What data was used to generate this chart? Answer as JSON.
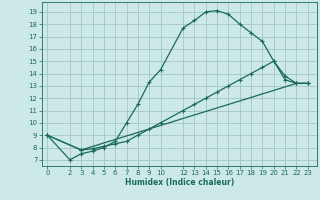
{
  "xlabel": "Humidex (Indice chaleur)",
  "bg_color": "#cce8e8",
  "grid_color": "#9bbfbf",
  "line_color": "#1a6b5a",
  "ylim": [
    6.5,
    19.8
  ],
  "xlim": [
    -0.5,
    23.8
  ],
  "yticks": [
    7,
    8,
    9,
    10,
    11,
    12,
    13,
    14,
    15,
    16,
    17,
    18,
    19
  ],
  "xticks": [
    0,
    2,
    3,
    4,
    5,
    6,
    7,
    8,
    9,
    10,
    12,
    13,
    14,
    15,
    16,
    17,
    18,
    19,
    20,
    21,
    22,
    23
  ],
  "curve1_x": [
    0,
    2,
    3,
    4,
    5,
    6,
    7,
    8,
    9,
    10,
    12,
    13,
    14,
    15,
    16,
    17,
    18,
    19,
    20,
    21,
    22,
    23
  ],
  "curve1_y": [
    9.0,
    7.0,
    7.5,
    7.7,
    8.0,
    8.5,
    10.0,
    11.5,
    13.3,
    14.3,
    17.7,
    18.3,
    19.0,
    19.1,
    18.8,
    18.0,
    17.3,
    16.6,
    15.0,
    13.5,
    13.2,
    13.2
  ],
  "curve2_x": [
    0,
    3,
    4,
    5,
    6,
    7,
    8,
    9,
    10,
    12,
    13,
    14,
    15,
    16,
    17,
    18,
    19,
    20,
    21,
    22,
    23
  ],
  "curve2_y": [
    9.0,
    7.8,
    7.9,
    8.1,
    8.3,
    8.5,
    9.0,
    9.5,
    10.0,
    11.0,
    11.5,
    12.0,
    12.5,
    13.0,
    13.5,
    14.0,
    14.5,
    15.0,
    13.8,
    13.2,
    13.2
  ],
  "curve3_x": [
    0,
    3,
    22,
    23
  ],
  "curve3_y": [
    9.0,
    7.8,
    13.2,
    13.2
  ]
}
